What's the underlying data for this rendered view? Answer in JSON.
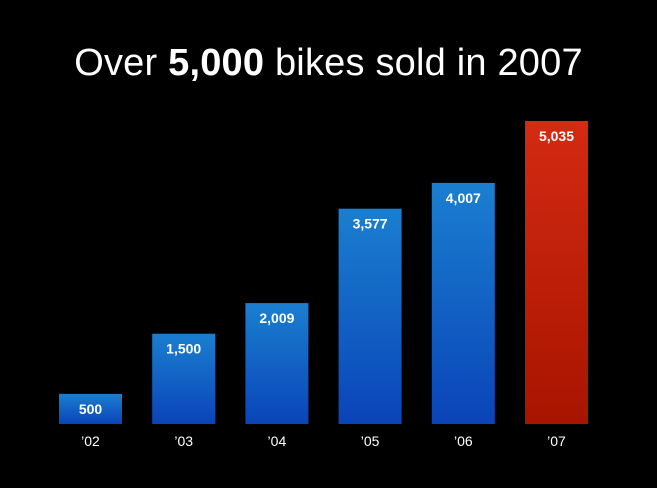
{
  "title": {
    "prefix": "Over ",
    "highlight": "5,000",
    "suffix": " bikes sold in 2007"
  },
  "colors": {
    "background": "#000000",
    "bar_top": "#1a7fd0",
    "bar_bottom": "#0a44b8",
    "highlight_top": "#d42a12",
    "highlight_bottom": "#a81400",
    "text": "#ffffff"
  },
  "chart_data": {
    "type": "bar",
    "categories": [
      "’02",
      "’03",
      "’04",
      "’05",
      "’06",
      "’07"
    ],
    "values": [
      500,
      1500,
      2009,
      3577,
      4007,
      5035
    ],
    "data_labels": [
      "500",
      "1,500",
      "2,009",
      "3,577",
      "4,007",
      "5,035"
    ],
    "highlight_index": 5,
    "ylim": [
      0,
      5035
    ],
    "grid": false,
    "legend": "none",
    "xlabel": "",
    "ylabel": ""
  }
}
